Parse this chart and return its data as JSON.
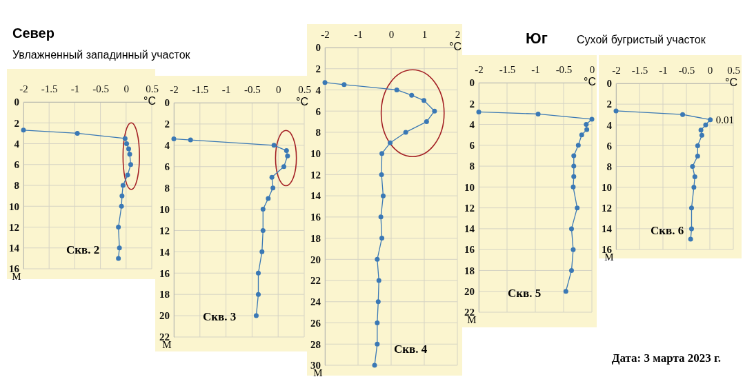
{
  "chart_data": [
    {
      "type": "line",
      "orientation": "horizontal",
      "title": "Север",
      "subtitle": "Увлажненный западинный участок",
      "xlabel": "°C",
      "ylabel": "М",
      "annotations": [
        "Скв. 2"
      ],
      "xlim": [
        -2,
        0.5
      ],
      "xticks": [
        -2,
        -1.5,
        -1,
        -0.5,
        0,
        0.5
      ],
      "ylim": [
        16,
        0
      ],
      "yticks": [
        0,
        2,
        4,
        6,
        8,
        10,
        12,
        14,
        16
      ],
      "grid": true,
      "marker": "circle",
      "series": [
        {
          "color": "#3a78b5",
          "x": [
            2.7,
            3,
            3.5,
            4,
            4.5,
            5,
            6,
            7,
            8,
            9,
            10,
            12,
            14,
            15
          ],
          "values": [
            -2,
            -0.95,
            -0.02,
            0.01,
            0.05,
            0.07,
            0.09,
            0.03,
            -0.06,
            -0.08,
            -0.09,
            -0.15,
            -0.13,
            -0.15
          ]
        }
      ]
    },
    {
      "type": "line",
      "orientation": "horizontal",
      "xlabel": "°C",
      "ylabel": "М",
      "annotations": [
        "Скв. 3"
      ],
      "xlim": [
        -2,
        0.5
      ],
      "xticks": [
        -2,
        -1.5,
        -1,
        -0.5,
        0,
        0.5
      ],
      "ylim": [
        22,
        0
      ],
      "yticks": [
        0,
        2,
        4,
        6,
        8,
        10,
        12,
        14,
        16,
        18,
        20,
        22
      ],
      "grid": true,
      "marker": "circle",
      "series": [
        {
          "color": "#3a78b5",
          "x": [
            3.4,
            3.5,
            4,
            4.5,
            5,
            6,
            7,
            8,
            9,
            10,
            12,
            14,
            16,
            18,
            20
          ],
          "values": [
            -2,
            -1.68,
            -0.08,
            0.16,
            0.18,
            0.11,
            -0.12,
            -0.1,
            -0.19,
            -0.29,
            -0.29,
            -0.31,
            -0.38,
            -0.38,
            -0.42
          ]
        }
      ]
    },
    {
      "type": "line",
      "orientation": "horizontal",
      "xlabel": "°C",
      "ylabel": "М",
      "annotations": [
        "Скв. 4"
      ],
      "xlim": [
        -2,
        2
      ],
      "xticks": [
        -2,
        -1,
        0,
        1,
        2
      ],
      "ylim": [
        30,
        0
      ],
      "yticks": [
        0,
        2,
        4,
        6,
        8,
        10,
        12,
        14,
        16,
        18,
        20,
        22,
        24,
        26,
        28,
        30
      ],
      "grid": true,
      "marker": "circle",
      "series": [
        {
          "color": "#3a78b5",
          "x": [
            3.3,
            3.5,
            4,
            4.5,
            5,
            6,
            7,
            8,
            9,
            10,
            12,
            14,
            16,
            18,
            20,
            22,
            24,
            26,
            28,
            30
          ],
          "values": [
            -2,
            -1.42,
            0.17,
            0.62,
            0.99,
            1.31,
            1.07,
            0.44,
            -0.03,
            -0.28,
            -0.29,
            -0.24,
            -0.31,
            -0.28,
            -0.42,
            -0.37,
            -0.39,
            -0.42,
            -0.42,
            -0.5
          ]
        }
      ]
    },
    {
      "type": "line",
      "orientation": "horizontal",
      "title": "Юг",
      "xlabel": "°C",
      "ylabel": "М",
      "annotations": [
        "Скв. 5"
      ],
      "xlim": [
        -2,
        0
      ],
      "xticks": [
        -2,
        -1.5,
        -1,
        -0.5,
        0
      ],
      "ylim": [
        22,
        0
      ],
      "yticks": [
        0,
        2,
        4,
        6,
        8,
        10,
        12,
        14,
        16,
        18,
        20,
        22
      ],
      "grid": true,
      "marker": "circle",
      "series": [
        {
          "color": "#3a78b5",
          "x": [
            2.8,
            3,
            3.5,
            4,
            4.5,
            5,
            6,
            7,
            8,
            9,
            10,
            12,
            14,
            16,
            18,
            20
          ],
          "values": [
            -2,
            -0.95,
            0,
            -0.1,
            -0.09,
            -0.18,
            -0.24,
            -0.32,
            -0.32,
            -0.32,
            -0.33,
            -0.26,
            -0.36,
            -0.33,
            -0.36,
            -0.46
          ]
        }
      ]
    },
    {
      "type": "line",
      "orientation": "horizontal",
      "subtitle": "Сухой бугристый участок",
      "xlabel": "°C",
      "ylabel": "М",
      "annotations": [
        "Скв. 6",
        {
          "text": "0.01",
          "x": 0.01,
          "y": 3.5
        },
        "Дата: 3 марта 2023 г."
      ],
      "xlim": [
        -2,
        0.5
      ],
      "xticks": [
        -2,
        -1.5,
        -1,
        -0.5,
        0,
        0.5
      ],
      "ylim": [
        16,
        0
      ],
      "yticks": [
        0,
        2,
        4,
        6,
        8,
        10,
        12,
        14,
        16
      ],
      "grid": true,
      "marker": "circle",
      "series": [
        {
          "color": "#3a78b5",
          "x": [
            2.65,
            3,
            3.5,
            4,
            4.5,
            5,
            6,
            7,
            8,
            9,
            10,
            12,
            14,
            15
          ],
          "values": [
            -2,
            -0.58,
            0.01,
            -0.09,
            -0.19,
            -0.17,
            -0.26,
            -0.26,
            -0.37,
            -0.32,
            -0.34,
            -0.39,
            -0.39,
            -0.41
          ]
        }
      ]
    }
  ]
}
